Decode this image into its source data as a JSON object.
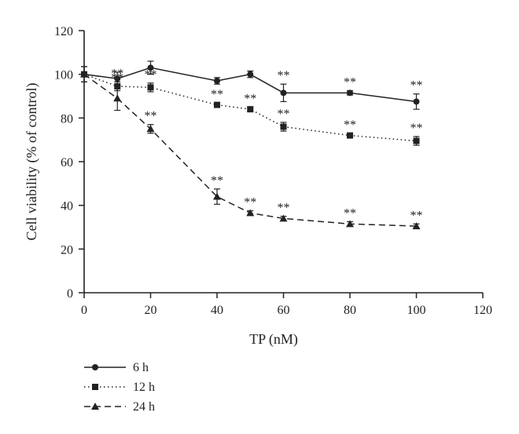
{
  "chart_data": {
    "type": "line",
    "xlabel": "TP (nM)",
    "ylabel": "Cell viability (% of control)",
    "xlim": [
      0,
      120
    ],
    "ylim": [
      0,
      120
    ],
    "xticks": [
      "0",
      "20",
      "40",
      "60",
      "80",
      "100",
      "120"
    ],
    "yticks": [
      "0",
      "20",
      "40",
      "60",
      "80",
      "100",
      "120"
    ],
    "grid": false,
    "legend": "bottom-left",
    "significance_label": "**",
    "series": [
      {
        "name": "6 h",
        "marker": "circle",
        "line_style": "solid",
        "x": [
          0,
          10,
          20,
          40,
          50,
          60,
          80,
          100
        ],
        "y": [
          100,
          98,
          103,
          97,
          100,
          91.5,
          91.5,
          87.5
        ],
        "error": [
          3.5,
          3,
          3,
          1.5,
          1.5,
          4,
          1,
          3.5
        ],
        "significance": [
          false,
          false,
          false,
          false,
          false,
          true,
          true,
          true
        ]
      },
      {
        "name": "12 h",
        "marker": "square",
        "line_style": "dotted",
        "x": [
          0,
          10,
          20,
          40,
          50,
          60,
          80,
          100
        ],
        "y": [
          100,
          94.5,
          94,
          86,
          84,
          76,
          72,
          69.5
        ],
        "error": [
          3.5,
          2,
          2,
          1,
          1,
          2,
          1,
          2
        ],
        "significance": [
          false,
          true,
          true,
          true,
          true,
          true,
          true,
          true
        ]
      },
      {
        "name": "24 h",
        "marker": "triangle",
        "line_style": "dashed",
        "x": [
          0,
          10,
          20,
          40,
          50,
          60,
          80,
          100
        ],
        "y": [
          100,
          89,
          75,
          44,
          36.5,
          34,
          31.5,
          30.5
        ],
        "error": [
          3.5,
          5.5,
          2,
          3.5,
          1,
          1,
          1,
          1
        ],
        "significance": [
          false,
          true,
          true,
          true,
          true,
          true,
          true,
          true
        ]
      }
    ],
    "colors": {
      "ink": "#222222",
      "background": "#ffffff"
    }
  }
}
